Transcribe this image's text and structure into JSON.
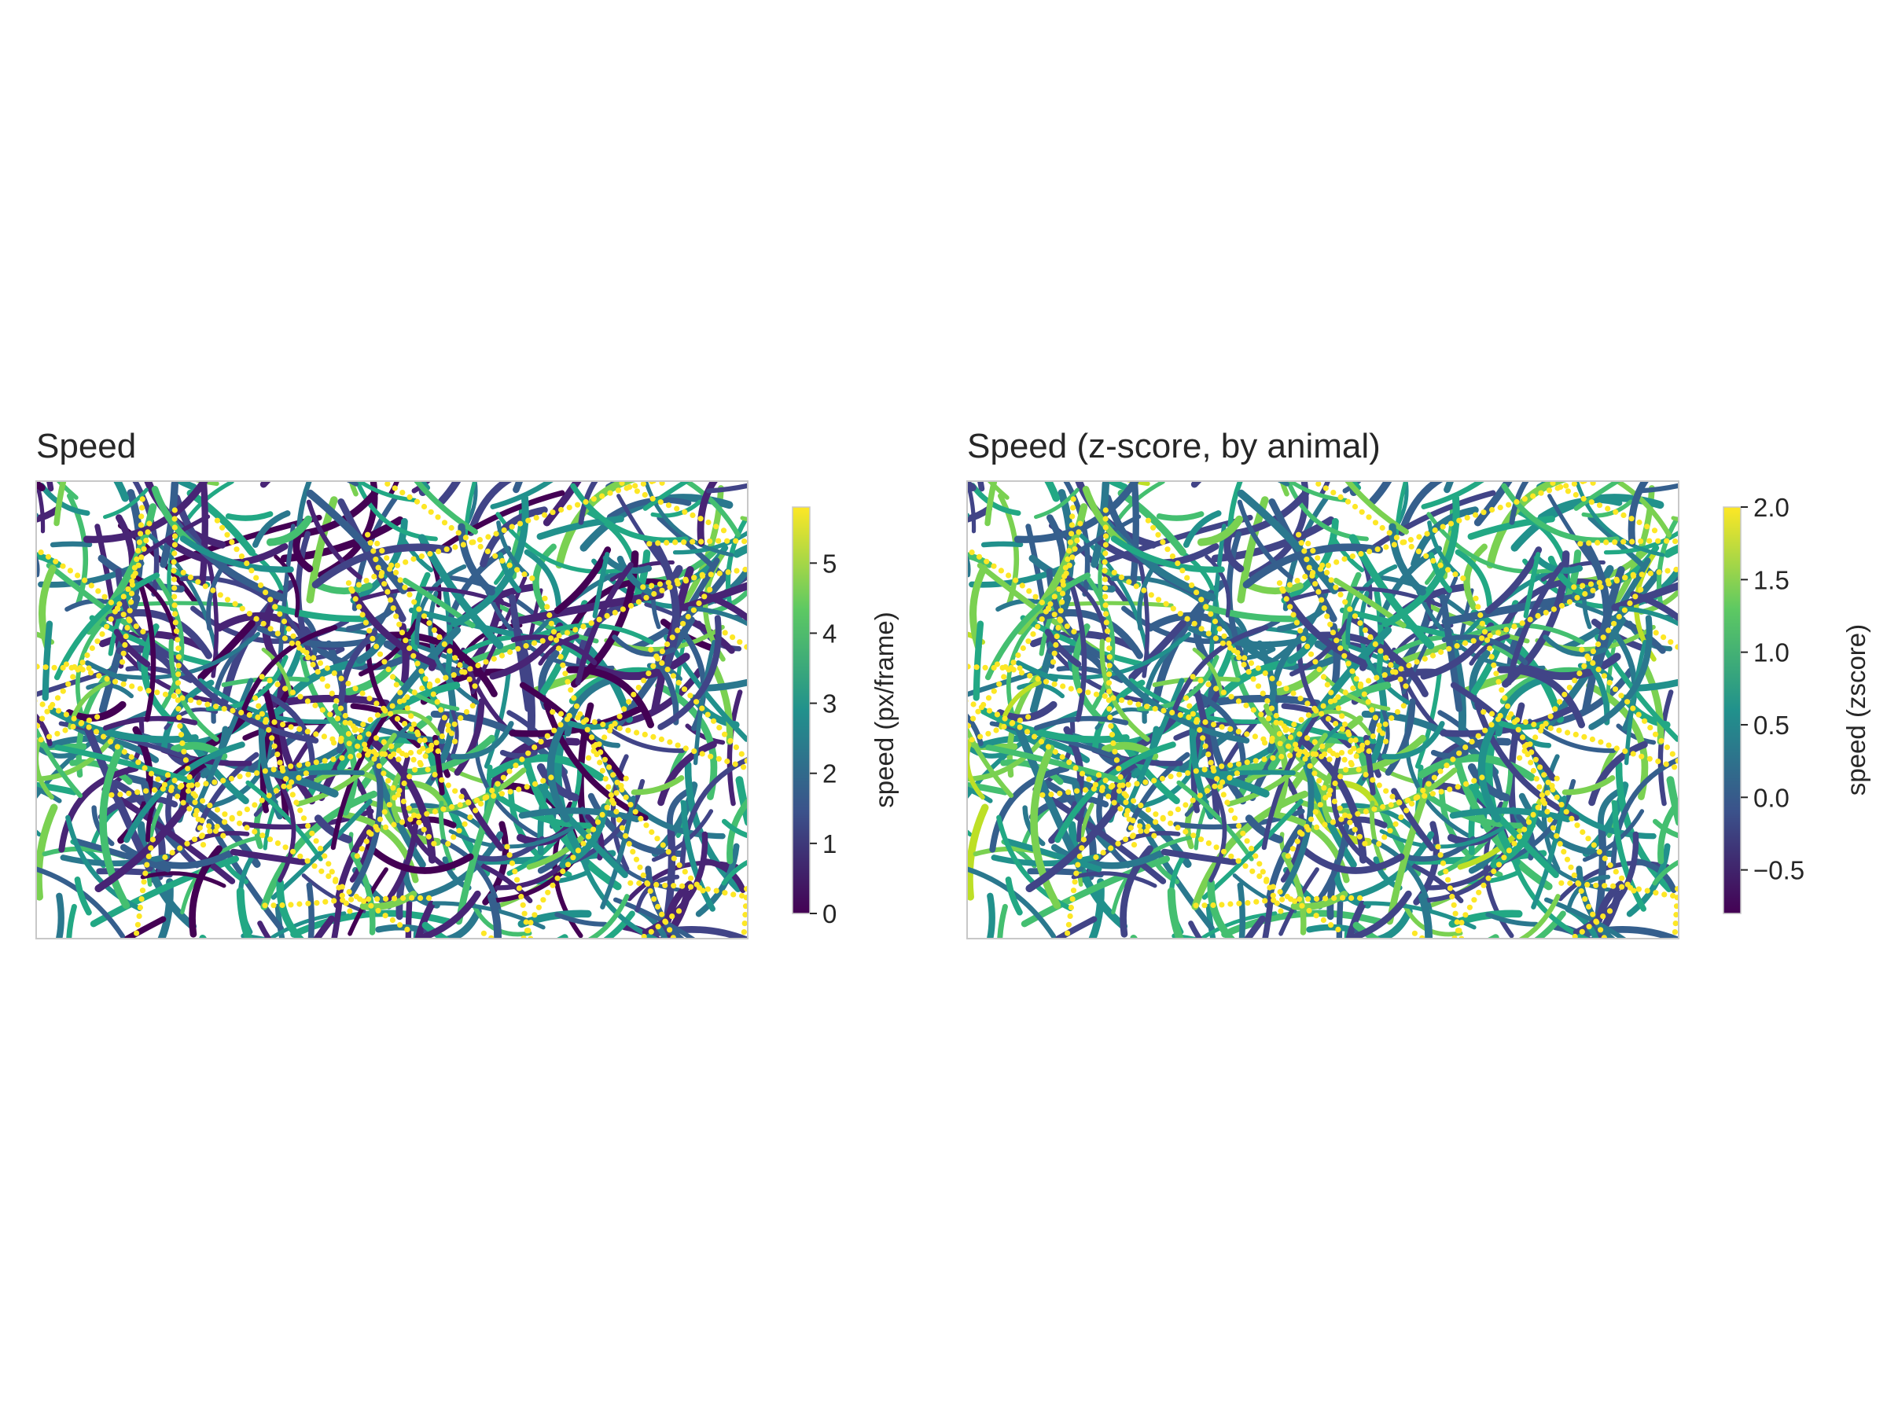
{
  "figure": {
    "background": "#ffffff",
    "frame_color": "#c8c8c8",
    "text_color": "#262626"
  },
  "chart_data": [
    {
      "type": "scatter",
      "title": "Speed",
      "xlabel": "",
      "ylabel": "",
      "axes_visible": false,
      "colormap": "viridis",
      "colorbar": {
        "label": "speed (px/frame)",
        "range": [
          0,
          5.8
        ],
        "ticks": [
          0,
          1,
          2,
          3,
          4,
          5
        ],
        "tick_labels": [
          "0",
          "1",
          "2",
          "3",
          "4",
          "5"
        ]
      },
      "encoding": "dense overlapping animal trajectories colored by speed; fast segments appear as yellow dotted tracks"
    },
    {
      "type": "scatter",
      "title": "Speed (z-score, by animal)",
      "xlabel": "",
      "ylabel": "",
      "axes_visible": false,
      "colormap": "viridis",
      "colorbar": {
        "label": "speed (zscore)",
        "range": [
          -0.8,
          2.0
        ],
        "ticks": [
          -0.5,
          0.0,
          0.5,
          1.0,
          1.5,
          2.0
        ],
        "tick_labels": [
          "−0.5",
          "0.0",
          "0.5",
          "1.0",
          "1.5",
          "2.0"
        ]
      },
      "encoding": "same trajectories colored by per-animal z-scored speed"
    }
  ]
}
